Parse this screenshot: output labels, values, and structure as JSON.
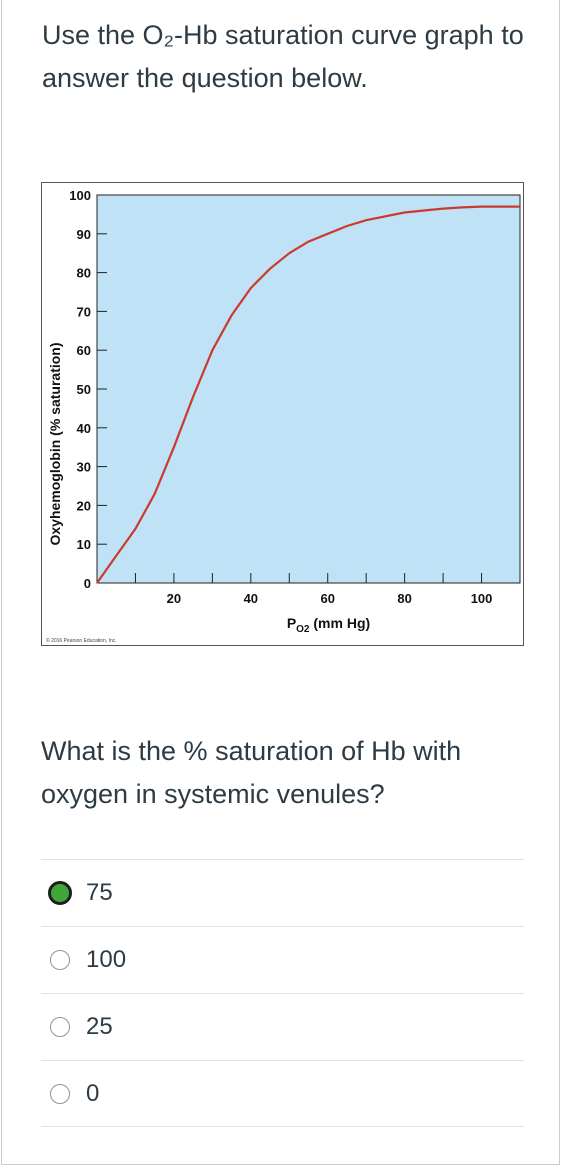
{
  "question": {
    "intro_text": "Use the O₂-Hb saturation curve graph to answer the question below.",
    "prompt_text": "What is the % saturation of Hb with oxygen in systemic venules?"
  },
  "answers": [
    {
      "label": "75",
      "selected": true
    },
    {
      "label": "100",
      "selected": false
    },
    {
      "label": "25",
      "selected": false
    },
    {
      "label": "0",
      "selected": false
    }
  ],
  "colors": {
    "plot_bg": "#bfe2f6",
    "curve": "#cc3a2f",
    "selected_radio": "#3fa73a"
  },
  "chart_data": {
    "type": "line",
    "ylabel": "Oxyhemoglobin (% saturation)",
    "xlabel_main": "P",
    "xlabel_sub": "O2",
    "xlabel_unit": "(mm Hg)",
    "copyright": "© 2016 Pearson Education, Inc.",
    "xlim": [
      0,
      110
    ],
    "ylim": [
      0,
      100
    ],
    "xticks": [
      20,
      40,
      60,
      80,
      100
    ],
    "yticks": [
      0,
      10,
      20,
      30,
      40,
      50,
      60,
      70,
      80,
      90,
      100
    ],
    "series": [
      {
        "x": [
          0,
          5,
          10,
          15,
          20,
          25,
          30,
          35,
          40,
          45,
          50,
          55,
          60,
          65,
          70,
          75,
          80,
          85,
          90,
          95,
          100,
          105,
          110
        ],
        "y": [
          0,
          7,
          14,
          23,
          35,
          48,
          60,
          69,
          76,
          81,
          85,
          88,
          90,
          92,
          93.5,
          94.5,
          95.5,
          96,
          96.5,
          96.8,
          97,
          97,
          97
        ]
      }
    ]
  }
}
